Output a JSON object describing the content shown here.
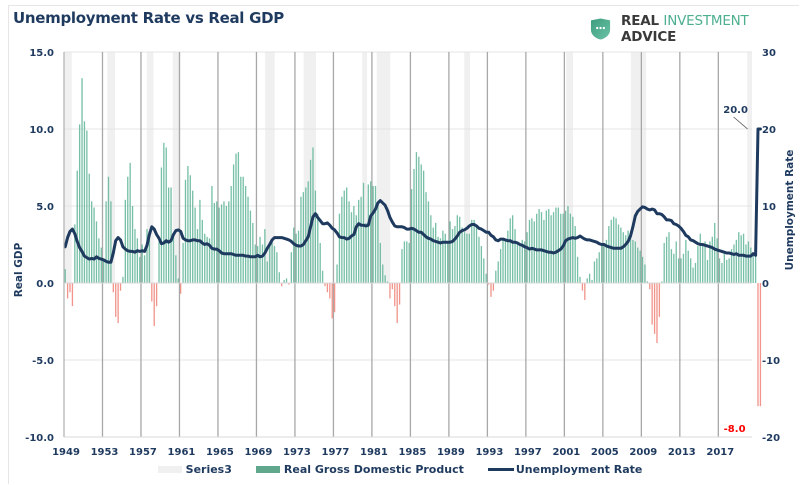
{
  "header": {
    "title": "Unemployment Rate vs Real GDP",
    "logo": {
      "word1": "REAL",
      "word2": "INVESTMENT",
      "word3": "ADVICE",
      "icon": "shield-dots-icon",
      "color": "#4caf8f"
    }
  },
  "colors": {
    "gdp_positive": "#5fb598",
    "gdp_negative": "#f08a80",
    "unemployment": "#1f3a5f",
    "recession": "#f0f0f0",
    "annotation_pos": "#1f3a5f",
    "annotation_neg": "#ff0000"
  },
  "chart_data": {
    "type": "bar+line",
    "title": "Unemployment Rate vs Real GDP",
    "ylabel_left": "Real GDP",
    "ylabel_right": "Unemployment Rate",
    "ylim_left": [
      -10,
      15
    ],
    "ylim_right": [
      -20,
      30
    ],
    "yticks_left": [
      "15.0",
      "10.0",
      "5.0",
      "0.0",
      "-5.0",
      "-10.0"
    ],
    "yticks_left_values": [
      15,
      10,
      5,
      0,
      -5,
      -10
    ],
    "yticks_right": [
      "30",
      "20",
      "10",
      "0",
      "-10",
      "-20"
    ],
    "yticks_right_values": [
      30,
      20,
      10,
      0,
      -10,
      -20
    ],
    "xlim": [
      1949,
      2020.5
    ],
    "xticks": [
      "1949",
      "1953",
      "1957",
      "1961",
      "1965",
      "1969",
      "1973",
      "1977",
      "1981",
      "1985",
      "1989",
      "1993",
      "1997",
      "2001",
      "2005",
      "2009",
      "2013",
      "2017"
    ],
    "grid": true,
    "legend": {
      "position": "bottom",
      "entries": [
        "Series3",
        "Real Gross Domestic Product",
        "Unemployment Rate"
      ]
    },
    "recessions": [
      [
        1949.0,
        1949.8
      ],
      [
        1953.5,
        1954.3
      ],
      [
        1957.6,
        1958.3
      ],
      [
        1960.3,
        1961.1
      ],
      [
        1969.9,
        1970.9
      ],
      [
        1973.9,
        1975.2
      ],
      [
        1980.0,
        1980.5
      ],
      [
        1981.5,
        1982.9
      ],
      [
        1990.6,
        1991.2
      ],
      [
        2001.2,
        2001.9
      ],
      [
        2007.9,
        2009.5
      ],
      [
        2020.0,
        2020.5
      ]
    ],
    "annotations": [
      {
        "label": "20.0",
        "series": "Unemployment Rate",
        "x": 2020.25,
        "y": 20.0
      },
      {
        "label": "-8.0",
        "series": "Real Gross Domestic Product",
        "x": 2020.25,
        "y": -8.0
      }
    ],
    "series": [
      {
        "name": "Real Gross Domestic Product",
        "axis": "left",
        "type": "bar",
        "x_start": 1949.0,
        "x_step": 0.25,
        "values": [
          0.9,
          -1.0,
          -0.6,
          -1.5,
          3.8,
          7.3,
          10.3,
          13.3,
          10.5,
          9.9,
          7.1,
          5.3,
          4.9,
          4.0,
          2.9,
          2.3,
          1.5,
          5.3,
          6.9,
          5.3,
          -0.6,
          -2.2,
          -2.6,
          -0.5,
          0.4,
          5.4,
          6.9,
          7.8,
          5.0,
          3.5,
          2.9,
          1.7,
          2.5,
          1.8,
          3.5,
          3.3,
          -1.2,
          -2.8,
          -1.5,
          2.7,
          7.5,
          9.1,
          8.8,
          6.2,
          6.2,
          3.2,
          1.8,
          0.3,
          -0.7,
          2.6,
          6.7,
          7.6,
          7.0,
          6.0,
          4.9,
          3.5,
          5.4,
          4.1,
          3.2,
          3.0,
          2.9,
          6.3,
          5.2,
          5.3,
          4.9,
          5.1,
          5.3,
          5.0,
          5.3,
          6.3,
          7.7,
          8.4,
          8.5,
          6.9,
          6.9,
          6.3,
          5.6,
          4.7,
          3.9,
          2.5,
          2.4,
          3.0,
          2.5,
          3.5,
          1.4,
          2.4,
          2.7,
          2.4,
          2.0,
          0.7,
          -0.2,
          0.2,
          0.3,
          -0.1,
          2.0,
          3.6,
          3.2,
          3.4,
          5.6,
          5.9,
          6.2,
          6.6,
          8.0,
          8.8,
          6.0,
          4.5,
          2.6,
          0.8,
          -0.2,
          -0.6,
          -1.0,
          -2.3,
          -1.9,
          1.2,
          4.5,
          5.6,
          6.0,
          6.2,
          5.3,
          4.6,
          5.0,
          4.4,
          5.4,
          5.6,
          6.5,
          3.9,
          6.4,
          6.6,
          6.3,
          6.3,
          5.2,
          2.6,
          1.2,
          0.5,
          0.1,
          -1.0,
          -0.4,
          -1.5,
          -2.6,
          -1.4,
          2.2,
          2.7,
          2.7,
          2.6,
          6.1,
          7.4,
          8.5,
          8.2,
          7.7,
          7.3,
          5.9,
          5.3,
          4.4,
          3.6,
          3.9,
          3.0,
          2.9,
          3.4,
          3.2,
          2.7,
          4.0,
          3.5,
          3.7,
          4.4,
          4.3,
          3.6,
          3.3,
          3.2,
          3.2,
          4.1,
          4.1,
          3.7,
          3.0,
          2.4,
          1.6,
          0.6,
          -0.1,
          -0.9,
          -0.5,
          0.8,
          1.4,
          2.2,
          2.9,
          2.7,
          3.4,
          4.2,
          4.4,
          3.5,
          2.7,
          2.4,
          2.8,
          2.7,
          3.3,
          4.1,
          4.2,
          4.0,
          4.5,
          4.8,
          4.6,
          4.1,
          4.7,
          4.8,
          4.4,
          4.6,
          4.9,
          4.9,
          4.5,
          4.5,
          4.7,
          5.0,
          4.5,
          4.3,
          3.7,
          1.7,
          0.4,
          -0.5,
          -1.1,
          0.3,
          0.6,
          0.2,
          1.4,
          1.6,
          2.0,
          2.5,
          2.6,
          2.8,
          3.7,
          4.1,
          4.3,
          4.2,
          3.8,
          3.6,
          3.3,
          3.1,
          3.4,
          3.2,
          2.8,
          2.7,
          2.3,
          2.1,
          1.7,
          1.2,
          0.1,
          -0.4,
          -2.7,
          -3.3,
          -3.9,
          -2.2,
          0.1,
          2.6,
          3.0,
          3.3,
          2.2,
          1.9,
          2.7,
          1.6,
          1.6,
          1.9,
          2.8,
          2.1,
          1.6,
          1.0,
          1.3,
          2.4,
          3.2,
          2.6,
          2.7,
          1.5,
          2.7,
          3.0,
          3.9,
          2.9,
          1.6,
          1.3,
          1.9,
          1.5,
          1.6,
          2.2,
          2.5,
          2.8,
          3.3,
          3.1,
          3.2,
          2.5,
          2.7,
          2.3,
          2.0,
          2.3,
          -8.0,
          -8.0
        ]
      },
      {
        "name": "Unemployment Rate",
        "axis": "right",
        "type": "line",
        "x_start": 1949.0,
        "x_step": 0.25,
        "values": [
          4.7,
          5.9,
          6.7,
          7.0,
          6.4,
          5.4,
          4.6,
          4.1,
          3.5,
          3.3,
          3.1,
          3.2,
          3.1,
          3.4,
          3.2,
          3.1,
          3.0,
          2.8,
          2.7,
          2.7,
          3.9,
          5.5,
          5.9,
          5.6,
          4.7,
          4.4,
          4.2,
          4.1,
          4.1,
          4.0,
          4.2,
          4.1,
          4.2,
          4.1,
          4.9,
          6.3,
          7.3,
          7.0,
          6.3,
          5.8,
          5.1,
          5.2,
          5.5,
          5.3,
          5.5,
          6.3,
          6.8,
          6.9,
          6.7,
          5.8,
          5.6,
          5.5,
          5.5,
          5.6,
          5.6,
          5.5,
          5.5,
          5.2,
          5.0,
          5.1,
          4.9,
          4.5,
          4.4,
          4.4,
          4.2,
          3.9,
          3.8,
          3.8,
          3.8,
          3.8,
          3.7,
          3.6,
          3.6,
          3.6,
          3.6,
          3.5,
          3.5,
          3.4,
          3.4,
          3.4,
          3.6,
          3.4,
          3.5,
          3.9,
          4.5,
          5.0,
          5.6,
          5.9,
          5.9,
          5.9,
          5.9,
          5.8,
          5.7,
          5.6,
          5.4,
          5.1,
          4.9,
          4.8,
          4.8,
          5.0,
          5.5,
          6.0,
          7.3,
          8.6,
          9.0,
          8.5,
          8.1,
          7.7,
          7.7,
          7.8,
          7.5,
          7.1,
          6.9,
          6.5,
          6.0,
          5.9,
          5.9,
          5.7,
          5.8,
          6.1,
          6.3,
          7.3,
          7.7,
          7.5,
          7.5,
          7.4,
          7.5,
          8.7,
          9.1,
          9.6,
          10.4,
          10.7,
          10.4,
          10.1,
          9.4,
          8.5,
          7.9,
          7.4,
          7.3,
          7.3,
          7.3,
          7.2,
          7.0,
          7.0,
          7.1,
          7.0,
          6.8,
          6.6,
          6.6,
          6.3,
          6.0,
          5.8,
          5.7,
          5.5,
          5.4,
          5.3,
          5.2,
          5.3,
          5.3,
          5.3,
          5.3,
          5.4,
          5.7,
          6.1,
          6.6,
          6.8,
          6.9,
          7.1,
          7.4,
          7.6,
          7.6,
          7.4,
          7.1,
          7.0,
          6.8,
          6.6,
          6.6,
          6.2,
          6.0,
          5.6,
          5.5,
          5.7,
          5.7,
          5.6,
          5.5,
          5.5,
          5.3,
          5.3,
          5.2,
          5.0,
          4.9,
          4.7,
          4.6,
          4.4,
          4.5,
          4.4,
          4.3,
          4.3,
          4.3,
          4.2,
          4.1,
          4.0,
          4.0,
          3.9,
          4.0,
          4.2,
          4.4,
          4.8,
          5.5,
          5.7,
          5.8,
          5.9,
          5.8,
          5.9,
          6.1,
          5.9,
          5.7,
          5.6,
          5.6,
          5.5,
          5.4,
          5.3,
          5.1,
          5.0,
          5.0,
          4.8,
          4.7,
          4.6,
          4.5,
          4.5,
          4.5,
          4.5,
          4.7,
          5.0,
          5.4,
          6.1,
          7.3,
          8.7,
          9.3,
          9.6,
          9.9,
          9.8,
          9.6,
          9.5,
          9.6,
          9.5,
          9.0,
          9.0,
          8.9,
          8.6,
          8.2,
          8.2,
          8.1,
          7.7,
          7.6,
          7.4,
          7.1,
          6.7,
          6.2,
          6.0,
          5.6,
          5.5,
          5.3,
          5.1,
          5.0,
          5.0,
          4.9,
          4.8,
          4.7,
          4.6,
          4.4,
          4.3,
          4.2,
          4.1,
          4.0,
          3.9,
          3.9,
          3.8,
          3.7,
          3.8,
          3.6,
          3.6,
          3.6,
          3.5,
          3.5,
          3.5,
          3.8,
          3.6,
          20.0,
          20.0
        ]
      }
    ]
  }
}
